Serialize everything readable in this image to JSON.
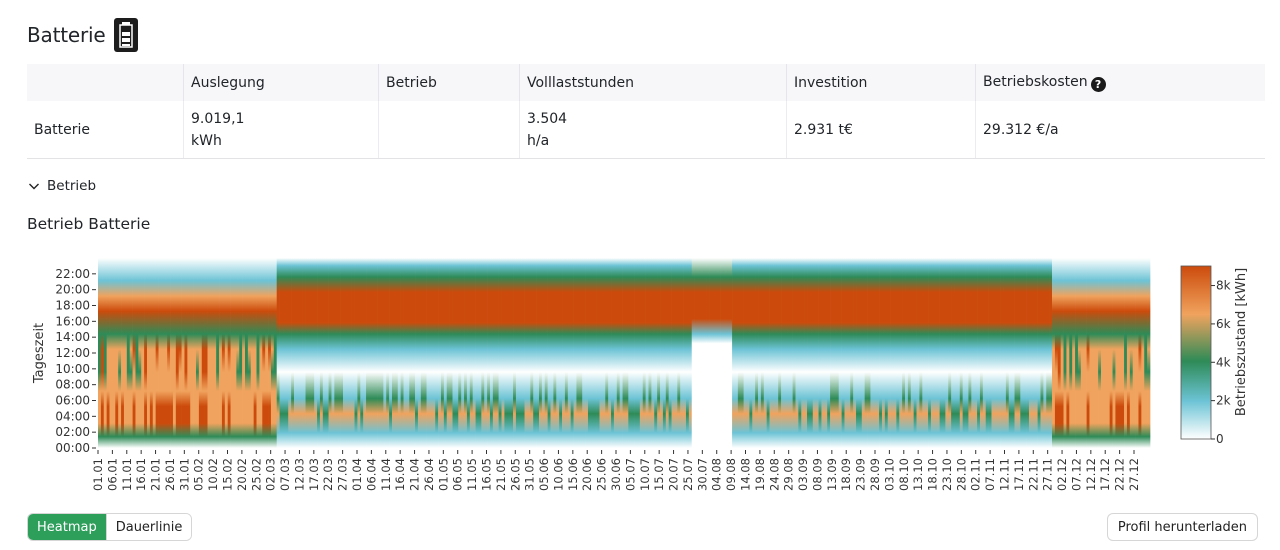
{
  "page": {
    "title": "Batterie"
  },
  "table": {
    "headers": [
      "",
      "Auslegung",
      "Betrieb",
      "Volllaststunden",
      "Investition",
      "Betriebskosten"
    ],
    "row": {
      "name": "Batterie",
      "auslegung_value": "9.019,1",
      "auslegung_unit": "kWh",
      "betrieb": "",
      "volllast_value": "3.504",
      "volllast_unit": "h/a",
      "investition": "2.931 t€",
      "betriebskosten": "29.312 €/a"
    },
    "help_glyph": "?"
  },
  "collapse": {
    "label": "Betrieb"
  },
  "section": {
    "title": "Betrieb Batterie"
  },
  "chart_data": {
    "type": "heatmap",
    "title": "Betrieb Batterie",
    "ylabel": "Tageszeit",
    "colorbar_label": "Betriebszustand [kWh]",
    "yticks": [
      "00:00",
      "02:00",
      "04:00",
      "06:00",
      "08:00",
      "10:00",
      "12:00",
      "14:00",
      "16:00",
      "18:00",
      "20:00",
      "22:00"
    ],
    "xticks": [
      "01.01",
      "06.01",
      "11.01",
      "16.01",
      "21.01",
      "26.01",
      "31.01",
      "05.02",
      "10.02",
      "15.02",
      "20.02",
      "25.02",
      "02.03",
      "07.03",
      "12.03",
      "17.03",
      "22.03",
      "27.03",
      "01.04",
      "06.04",
      "11.04",
      "16.04",
      "21.04",
      "26.04",
      "01.05",
      "06.05",
      "11.05",
      "16.05",
      "21.05",
      "26.05",
      "31.05",
      "05.06",
      "10.06",
      "15.06",
      "20.06",
      "25.06",
      "30.06",
      "05.07",
      "10.07",
      "15.07",
      "20.07",
      "25.07",
      "30.07",
      "04.08",
      "09.08",
      "14.08",
      "19.08",
      "24.08",
      "29.08",
      "03.09",
      "08.09",
      "13.09",
      "18.09",
      "23.09",
      "28.09",
      "03.10",
      "08.10",
      "13.10",
      "18.10",
      "23.10",
      "28.10",
      "02.11",
      "07.11",
      "12.11",
      "17.11",
      "22.11",
      "27.11",
      "02.12",
      "07.12",
      "12.12",
      "17.12",
      "22.12",
      "27.12"
    ],
    "colorbar_ticks": [
      "0",
      "2k",
      "4k",
      "6k",
      "8k"
    ],
    "colorbar_values": [
      0,
      2000,
      4000,
      6000,
      8000
    ],
    "value_range": [
      0,
      9019
    ],
    "colors": {
      "c0": "#ffffff",
      "c1": "#6cc3d5",
      "c2": "#2e8b57",
      "c3": "#f0a35e",
      "c4": "#cc4b0c"
    }
  },
  "buttons": {
    "heatmap": "Heatmap",
    "dauerlinie": "Dauerlinie",
    "download": "Profil herunterladen"
  },
  "colors": {
    "accent": "#2e9e5b"
  }
}
